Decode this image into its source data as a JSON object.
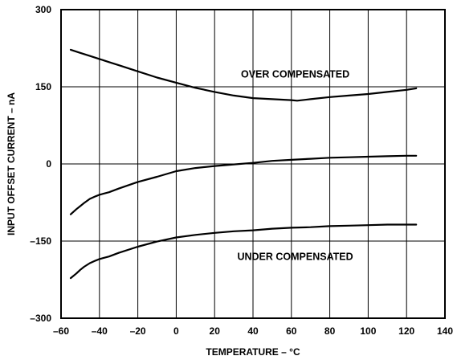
{
  "chart_data": {
    "type": "line",
    "title": "",
    "xlabel": "TEMPERATURE – °C",
    "ylabel": "INPUT OFFSET CURRENT – nA",
    "xlim": [
      -60,
      140
    ],
    "ylim": [
      -300,
      300
    ],
    "x_ticks": [
      -60,
      -40,
      -20,
      0,
      20,
      40,
      60,
      80,
      100,
      120,
      140
    ],
    "y_ticks": [
      -300,
      -150,
      0,
      150,
      300
    ],
    "x_tick_labels": [
      "–60",
      "–40",
      "–20",
      "0",
      "20",
      "40",
      "60",
      "80",
      "100",
      "120",
      "140"
    ],
    "y_tick_labels": [
      "–300",
      "–150",
      "0",
      "150",
      "300"
    ],
    "grid": true,
    "annotations": [
      {
        "text": "OVER COMPENSATED",
        "x": 62,
        "y": 168
      },
      {
        "text": "UNDER COMPENSATED",
        "x": 62,
        "y": -187
      }
    ],
    "series": [
      {
        "x": [
          -55,
          -50,
          -45,
          -40,
          -35,
          -30,
          -20,
          -10,
          0,
          10,
          20,
          30,
          40,
          50,
          60,
          63,
          70,
          80,
          90,
          100,
          110,
          120,
          125
        ],
        "values": [
          222,
          216,
          210,
          204,
          198,
          192,
          180,
          168,
          158,
          148,
          140,
          133,
          128,
          126,
          124,
          123,
          126,
          130,
          133,
          136,
          140,
          144,
          147
        ]
      },
      {
        "x": [
          -55,
          -52,
          -50,
          -48,
          -45,
          -42,
          -40,
          -35,
          -30,
          -20,
          -10,
          0,
          10,
          20,
          30,
          40,
          50,
          60,
          70,
          80,
          90,
          100,
          110,
          120,
          125
        ],
        "values": [
          -98,
          -88,
          -82,
          -76,
          -68,
          -63,
          -60,
          -55,
          -48,
          -35,
          -25,
          -14,
          -8,
          -4,
          -1,
          2,
          6,
          8,
          10,
          12,
          13,
          14,
          15,
          16,
          16
        ]
      },
      {
        "x": [
          -55,
          -52,
          -50,
          -48,
          -45,
          -42,
          -40,
          -35,
          -30,
          -20,
          -10,
          0,
          10,
          20,
          30,
          40,
          50,
          60,
          70,
          80,
          90,
          100,
          110,
          120,
          125
        ],
        "values": [
          -222,
          -213,
          -206,
          -200,
          -193,
          -188,
          -185,
          -180,
          -173,
          -161,
          -151,
          -143,
          -138,
          -134,
          -131,
          -129,
          -126,
          -124,
          -123,
          -121,
          -120,
          -119,
          -118,
          -118,
          -118
        ]
      }
    ]
  }
}
